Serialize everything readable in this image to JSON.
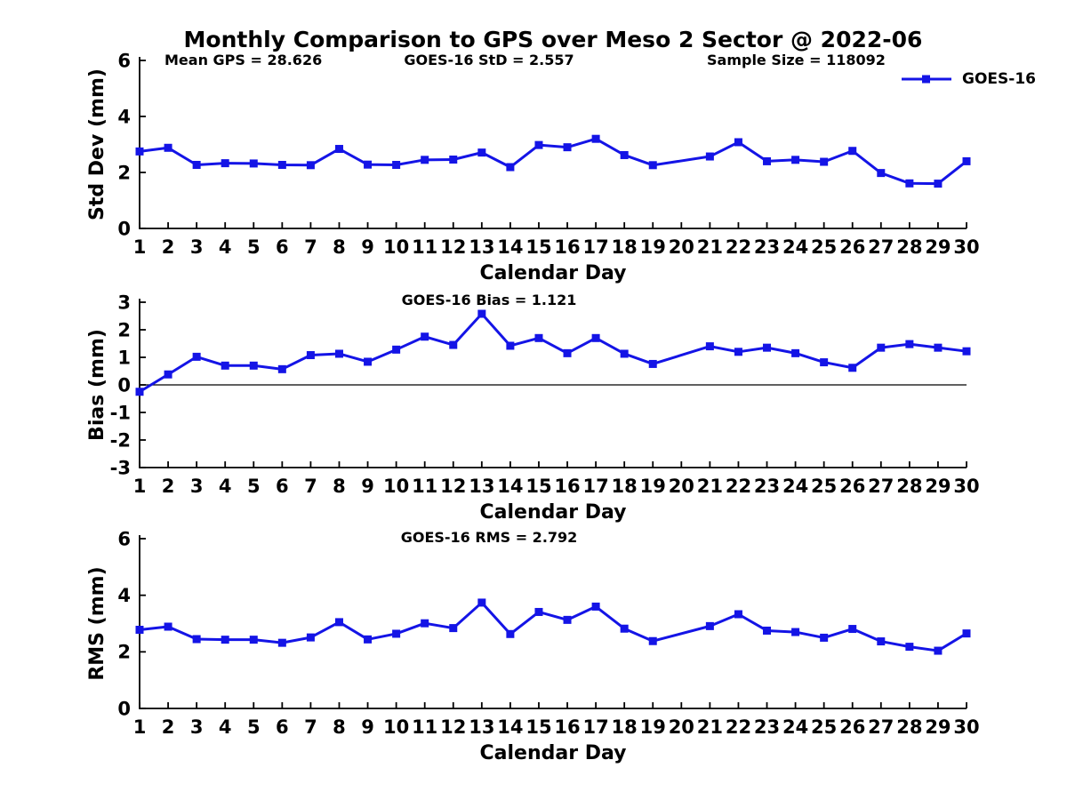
{
  "title": "Monthly Comparison to GPS over Meso 2 Sector @ 2022-06",
  "legend": {
    "label": "GOES-16",
    "color": "#1414e6"
  },
  "chart_data": [
    {
      "type": "line",
      "name": "std-dev",
      "title": "",
      "ylabel": "Std Dev (mm)",
      "xlabel": "Calendar Day",
      "ylim": [
        0,
        6
      ],
      "yticks": [
        0,
        2,
        4,
        6
      ],
      "xticks": [
        1,
        2,
        3,
        4,
        5,
        6,
        7,
        8,
        9,
        10,
        11,
        12,
        13,
        14,
        15,
        16,
        17,
        18,
        19,
        20,
        21,
        22,
        23,
        24,
        25,
        26,
        27,
        28,
        29,
        30
      ],
      "annotations": [
        "Mean GPS = 28.626",
        "GOES-16 StD = 2.557",
        "Sample Size = 118092"
      ],
      "series": [
        {
          "name": "GOES-16",
          "x": [
            1,
            2,
            3,
            4,
            5,
            6,
            7,
            8,
            9,
            10,
            11,
            12,
            13,
            14,
            15,
            16,
            17,
            18,
            19,
            21,
            22,
            23,
            24,
            25,
            26,
            27,
            28,
            29,
            30
          ],
          "values": [
            2.75,
            2.88,
            2.27,
            2.33,
            2.32,
            2.27,
            2.26,
            2.84,
            2.28,
            2.27,
            2.45,
            2.46,
            2.71,
            2.19,
            2.98,
            2.9,
            3.2,
            2.62,
            2.26,
            2.57,
            3.08,
            2.4,
            2.45,
            2.38,
            2.77,
            1.98,
            1.61,
            1.6,
            2.4
          ]
        }
      ],
      "grid": false,
      "legend_position": "top-right-outside"
    },
    {
      "type": "line",
      "name": "bias",
      "title": "",
      "ylabel": "Bias (mm)",
      "xlabel": "Calendar Day",
      "ylim": [
        -3,
        3
      ],
      "yticks": [
        -3,
        -2,
        -1,
        0,
        1,
        2,
        3
      ],
      "xticks": [
        1,
        2,
        3,
        4,
        5,
        6,
        7,
        8,
        9,
        10,
        11,
        12,
        13,
        14,
        15,
        16,
        17,
        18,
        19,
        20,
        21,
        22,
        23,
        24,
        25,
        26,
        27,
        28,
        29,
        30
      ],
      "annotations": [
        "GOES-16 Bias = 1.121"
      ],
      "zero_line": true,
      "series": [
        {
          "name": "GOES-16",
          "x": [
            1,
            2,
            3,
            4,
            5,
            6,
            7,
            8,
            9,
            10,
            11,
            12,
            13,
            14,
            15,
            16,
            17,
            18,
            19,
            21,
            22,
            23,
            24,
            25,
            26,
            27,
            28,
            29,
            30
          ],
          "values": [
            -0.25,
            0.38,
            1.02,
            0.7,
            0.7,
            0.57,
            1.08,
            1.13,
            0.84,
            1.28,
            1.75,
            1.45,
            2.58,
            1.42,
            1.7,
            1.15,
            1.7,
            1.13,
            0.76,
            1.4,
            1.2,
            1.35,
            1.15,
            0.82,
            0.62,
            1.35,
            1.48,
            1.35,
            1.22
          ]
        }
      ],
      "grid": false
    },
    {
      "type": "line",
      "name": "rms",
      "title": "",
      "ylabel": "RMS (mm)",
      "xlabel": "Calendar Day",
      "ylim": [
        0,
        6
      ],
      "yticks": [
        0,
        2,
        4,
        6
      ],
      "xticks": [
        1,
        2,
        3,
        4,
        5,
        6,
        7,
        8,
        9,
        10,
        11,
        12,
        13,
        14,
        15,
        16,
        17,
        18,
        19,
        20,
        21,
        22,
        23,
        24,
        25,
        26,
        27,
        28,
        29,
        30
      ],
      "annotations": [
        "GOES-16 RMS = 2.792"
      ],
      "series": [
        {
          "name": "GOES-16",
          "x": [
            1,
            2,
            3,
            4,
            5,
            6,
            7,
            8,
            9,
            10,
            11,
            12,
            13,
            14,
            15,
            16,
            17,
            18,
            19,
            21,
            22,
            23,
            24,
            25,
            26,
            27,
            28,
            29,
            30
          ],
          "values": [
            2.78,
            2.89,
            2.45,
            2.43,
            2.43,
            2.32,
            2.51,
            3.05,
            2.44,
            2.64,
            3.01,
            2.84,
            3.74,
            2.63,
            3.41,
            3.13,
            3.6,
            2.82,
            2.38,
            2.91,
            3.33,
            2.75,
            2.7,
            2.5,
            2.81,
            2.37,
            2.18,
            2.04,
            2.65
          ]
        }
      ],
      "grid": false
    }
  ]
}
